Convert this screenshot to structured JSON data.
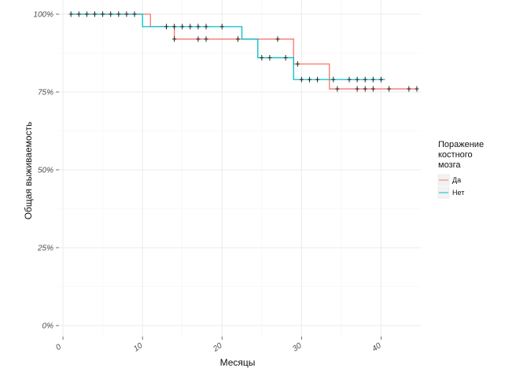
{
  "chart_data": {
    "type": "line",
    "title": "",
    "xlabel": "Месяцы",
    "ylabel": "Общая выживаемость",
    "xlim": [
      -0.5,
      45
    ],
    "ylim": [
      0,
      1
    ],
    "x_ticks": [
      0,
      10,
      20,
      30,
      40
    ],
    "x_tick_labels": [
      "0",
      "10",
      "20",
      "30",
      "40"
    ],
    "y_ticks": [
      0,
      0.25,
      0.5,
      0.75,
      1.0
    ],
    "y_tick_labels": [
      "0%",
      "25%",
      "50%",
      "75%",
      "100%"
    ],
    "grid": true,
    "legend": {
      "title_lines": [
        "Поражение",
        "костного",
        "мозга"
      ],
      "placement": "right"
    },
    "series": [
      {
        "name": "Да",
        "color": "#f8766d",
        "steps": [
          [
            1,
            1.0
          ],
          [
            11,
            0.96
          ],
          [
            14,
            0.92
          ],
          [
            29,
            0.84
          ],
          [
            33.5,
            0.76
          ],
          [
            44.5,
            0.76
          ]
        ],
        "censored": [
          [
            14,
            0.92
          ],
          [
            17,
            0.92
          ],
          [
            18,
            0.92
          ],
          [
            22,
            0.92
          ],
          [
            27,
            0.92
          ],
          [
            29.5,
            0.84
          ],
          [
            34.5,
            0.76
          ],
          [
            37,
            0.76
          ],
          [
            38,
            0.76
          ],
          [
            39,
            0.76
          ],
          [
            41,
            0.76
          ],
          [
            43.5,
            0.76
          ],
          [
            44.5,
            0.76
          ]
        ]
      },
      {
        "name": "Нет",
        "color": "#00bfc4",
        "steps": [
          [
            1,
            1.0
          ],
          [
            10,
            0.96
          ],
          [
            22.5,
            0.92
          ],
          [
            24.5,
            0.86
          ],
          [
            29,
            0.79
          ],
          [
            40.5,
            0.79
          ]
        ],
        "censored": [
          [
            1,
            1.0
          ],
          [
            2,
            1.0
          ],
          [
            3,
            1.0
          ],
          [
            4,
            1.0
          ],
          [
            5,
            1.0
          ],
          [
            6,
            1.0
          ],
          [
            7,
            1.0
          ],
          [
            8,
            1.0
          ],
          [
            9,
            1.0
          ],
          [
            13,
            0.96
          ],
          [
            14,
            0.96
          ],
          [
            15,
            0.96
          ],
          [
            16,
            0.96
          ],
          [
            17,
            0.96
          ],
          [
            18,
            0.96
          ],
          [
            20,
            0.96
          ],
          [
            25,
            0.86
          ],
          [
            26,
            0.86
          ],
          [
            28,
            0.86
          ],
          [
            30,
            0.79
          ],
          [
            31,
            0.79
          ],
          [
            32,
            0.79
          ],
          [
            34,
            0.79
          ],
          [
            36,
            0.79
          ],
          [
            37,
            0.79
          ],
          [
            38,
            0.79
          ],
          [
            39,
            0.79
          ],
          [
            40,
            0.79
          ]
        ]
      }
    ]
  }
}
